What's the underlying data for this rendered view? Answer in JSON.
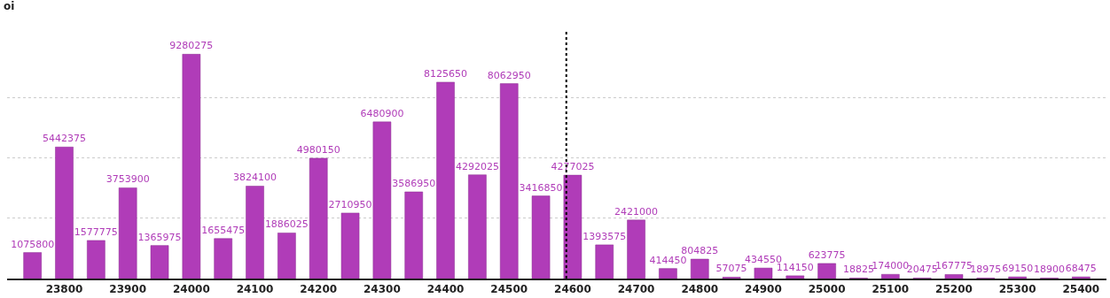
{
  "chart_data": {
    "type": "bar",
    "ylabel": "oi",
    "x": [
      23750,
      23800,
      23850,
      23900,
      23950,
      24000,
      24050,
      24100,
      24150,
      24200,
      24250,
      24300,
      24350,
      24400,
      24450,
      24500,
      24550,
      24600,
      24650,
      24700,
      24750,
      24800,
      24850,
      24900,
      24950,
      25000,
      25050,
      25100,
      25150,
      25200,
      25250,
      25300,
      25350,
      25400
    ],
    "values": [
      1075800,
      5442375,
      1577775,
      3753900,
      1365975,
      9280275,
      1655475,
      3824100,
      1886025,
      4980150,
      2710950,
      6480900,
      3586950,
      8125650,
      4292025,
      8062950,
      3416850,
      4277025,
      1393575,
      2421000,
      414450,
      804825,
      57075,
      434550,
      114150,
      623775,
      18825,
      174000,
      20475,
      167775,
      18975,
      69150,
      18900,
      68475
    ],
    "color": "#b03cb8",
    "data_labels": true,
    "xlim": [
      23710,
      25440
    ],
    "xticks": [
      23800,
      23900,
      24000,
      24100,
      24200,
      24300,
      24400,
      24500,
      24600,
      24700,
      24800,
      24900,
      25000,
      25100,
      25200,
      25300,
      25400
    ],
    "yticks": [
      {
        "value": 0,
        "label": null
      },
      {
        "value": 2500000,
        "label": null
      },
      {
        "value": 5000000,
        "label": null
      },
      {
        "value": 7500000,
        "label": null
      }
    ],
    "tick_labels": "x",
    "grid": "y",
    "ref_lines": [
      {
        "axis": "x",
        "value": 24590,
        "color": "#000000",
        "line_style": "dotted"
      }
    ]
  }
}
